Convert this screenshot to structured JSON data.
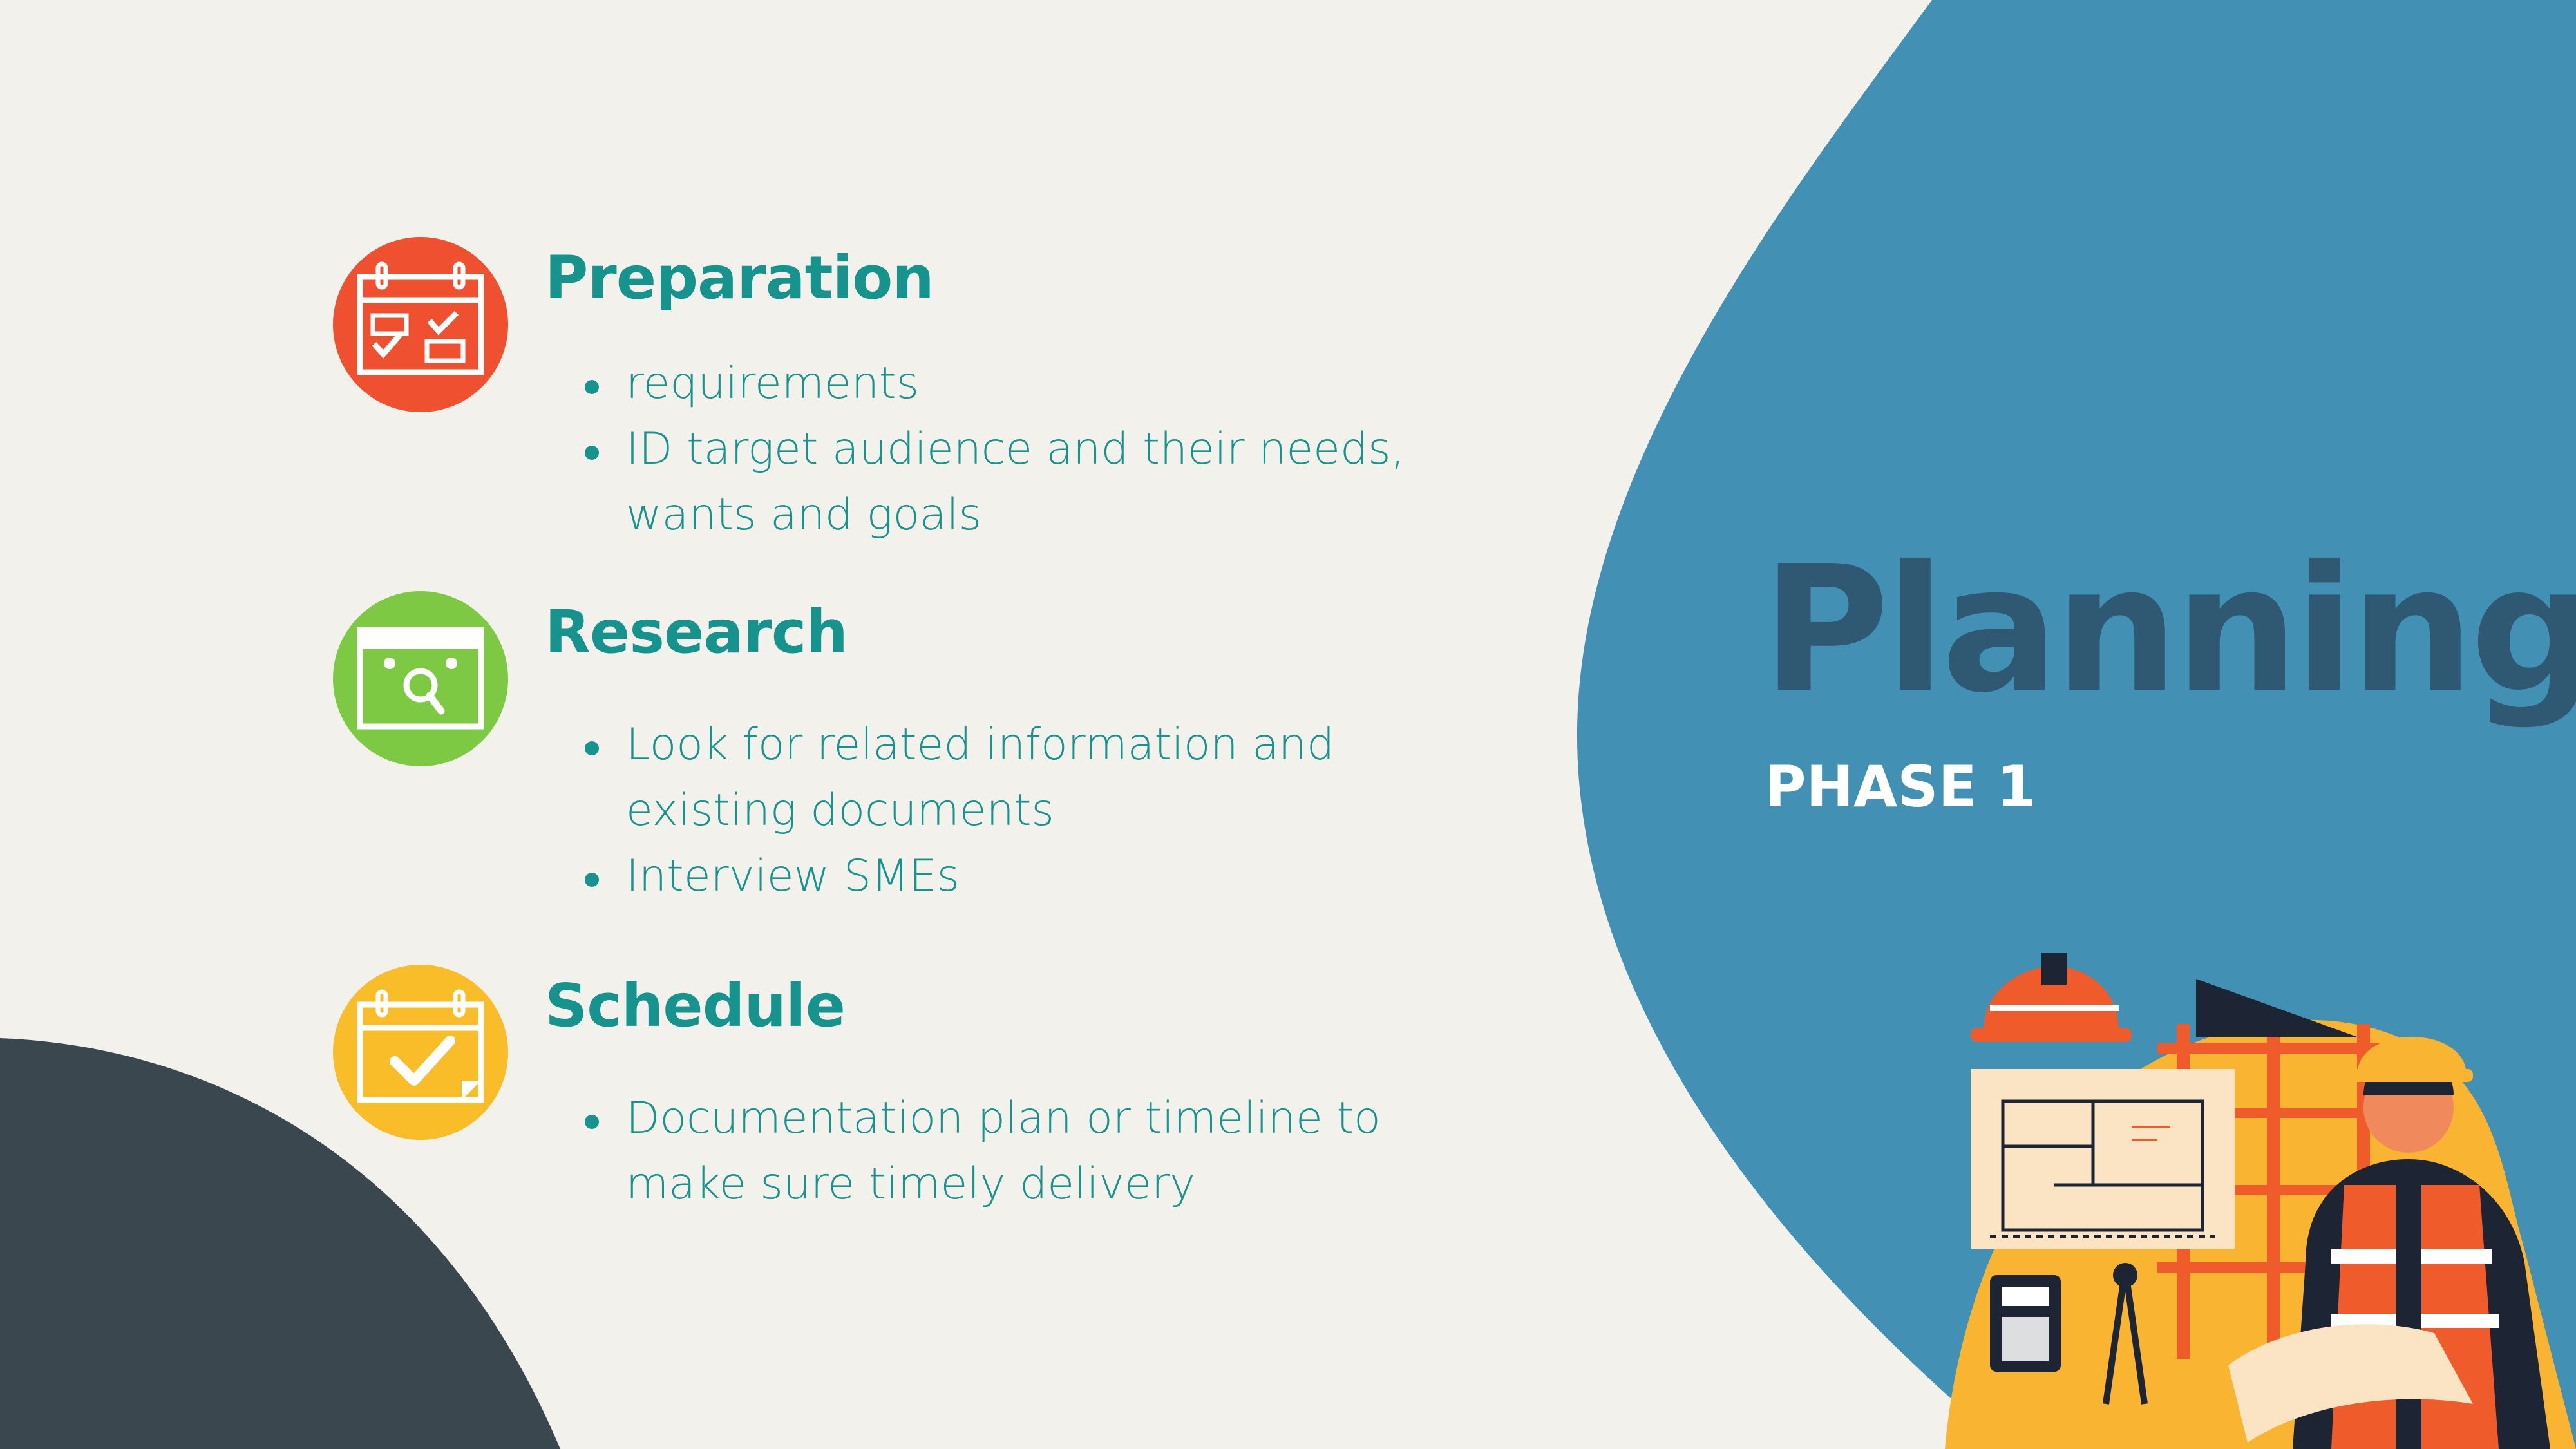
{
  "title": "Planning",
  "subtitle": "PHASE 1",
  "colors": {
    "background": "#f3f1ec",
    "blue_blob": "#4390b5",
    "dark_corner": "#3b474f",
    "teal_text": "#17938e",
    "title_text": "#2f5873",
    "preparation_icon": "#ef5030",
    "research_icon": "#7ec943",
    "schedule_icon": "#f9bd2a"
  },
  "sections": [
    {
      "heading": "Preparation",
      "icon": "calendar-checklist-icon",
      "bullets": [
        "requirements",
        "ID target audience and their needs, wants and goals"
      ]
    },
    {
      "heading": "Research",
      "icon": "calendar-search-icon",
      "bullets": [
        "Look for related information and existing documents",
        "Interview SMEs"
      ]
    },
    {
      "heading": "Schedule",
      "icon": "calendar-check-icon",
      "bullets": [
        "Documentation plan or timeline to make sure timely delivery"
      ]
    }
  ],
  "illustration": "construction-engineer-illustration"
}
